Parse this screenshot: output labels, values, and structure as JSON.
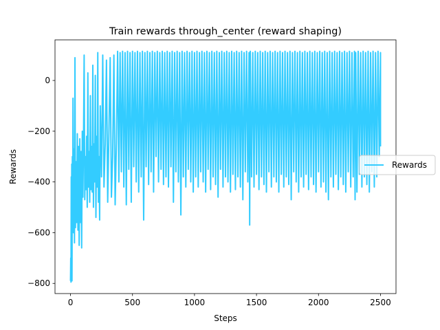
{
  "chart_data": {
    "type": "line",
    "title": "Train rewards through_center (reward shaping)",
    "xlabel": "Steps",
    "ylabel": "Rewards",
    "xlim": [
      -125,
      2625
    ],
    "ylim": [
      -840,
      160
    ],
    "xticks": [
      0,
      500,
      1000,
      1500,
      2000,
      2500
    ],
    "xtick_labels": [
      "0",
      "500",
      "1000",
      "1500",
      "2000",
      "2500"
    ],
    "yticks": [
      -800,
      -600,
      -400,
      -200,
      0
    ],
    "ytick_labels": [
      "−800",
      "−600",
      "−400",
      "−200",
      "0"
    ],
    "grid": false,
    "legend_position": "right",
    "series": [
      {
        "name": "Rewards",
        "color": "#33ccff",
        "description_points": [
          [
            0,
            -790
          ],
          [
            2,
            -700
          ],
          [
            4,
            -795
          ],
          [
            6,
            -380
          ],
          [
            8,
            -780
          ],
          [
            10,
            -330
          ],
          [
            12,
            -790
          ],
          [
            15,
            -300
          ],
          [
            18,
            -560
          ],
          [
            20,
            -70
          ],
          [
            24,
            -600
          ],
          [
            28,
            -270
          ],
          [
            32,
            -640
          ],
          [
            36,
            90
          ],
          [
            40,
            -580
          ],
          [
            45,
            -320
          ],
          [
            50,
            -560
          ],
          [
            55,
            -210
          ],
          [
            60,
            -590
          ],
          [
            65,
            -260
          ],
          [
            70,
            -650
          ],
          [
            75,
            -230
          ],
          [
            80,
            -560
          ],
          [
            85,
            -280
          ],
          [
            90,
            -660
          ],
          [
            95,
            -200
          ],
          [
            100,
            -460
          ],
          [
            105,
            -230
          ],
          [
            110,
            100
          ],
          [
            115,
            -470
          ],
          [
            120,
            -300
          ],
          [
            125,
            -430
          ],
          [
            130,
            -220
          ],
          [
            135,
            -500
          ],
          [
            140,
            30
          ],
          [
            145,
            -420
          ],
          [
            150,
            -280
          ],
          [
            155,
            -480
          ],
          [
            160,
            -60
          ],
          [
            165,
            -430
          ],
          [
            170,
            -260
          ],
          [
            175,
            -440
          ],
          [
            180,
            60
          ],
          [
            185,
            -500
          ],
          [
            190,
            -250
          ],
          [
            195,
            -400
          ],
          [
            200,
            20
          ],
          [
            205,
            -540
          ],
          [
            210,
            -220
          ],
          [
            215,
            -420
          ],
          [
            220,
            110
          ],
          [
            225,
            -480
          ],
          [
            230,
            -300
          ],
          [
            235,
            -550
          ],
          [
            240,
            -100
          ],
          [
            250,
            -380
          ],
          [
            260,
            100
          ],
          [
            270,
            -420
          ],
          [
            280,
            -250
          ],
          [
            290,
            80
          ],
          [
            300,
            -480
          ],
          [
            310,
            -200
          ],
          [
            320,
            90
          ],
          [
            330,
            -460
          ],
          [
            340,
            -300
          ],
          [
            350,
            100
          ],
          [
            360,
            -490
          ],
          [
            370,
            -250
          ],
          [
            380,
            115
          ],
          [
            390,
            -400
          ],
          [
            400,
            110
          ],
          [
            410,
            -360
          ],
          [
            420,
            115
          ],
          [
            430,
            -420
          ],
          [
            440,
            110
          ],
          [
            450,
            -490
          ],
          [
            460,
            115
          ],
          [
            470,
            -350
          ],
          [
            480,
            110
          ],
          [
            490,
            -480
          ],
          [
            500,
            115
          ],
          [
            510,
            -340
          ],
          [
            520,
            110
          ],
          [
            530,
            -400
          ],
          [
            540,
            115
          ],
          [
            550,
            -440
          ],
          [
            560,
            110
          ],
          [
            570,
            -380
          ],
          [
            580,
            115
          ],
          [
            590,
            -550
          ],
          [
            600,
            110
          ],
          [
            610,
            -340
          ],
          [
            620,
            115
          ],
          [
            630,
            -410
          ],
          [
            640,
            110
          ],
          [
            650,
            -360
          ],
          [
            660,
            115
          ],
          [
            670,
            -440
          ],
          [
            680,
            110
          ],
          [
            690,
            -300
          ],
          [
            700,
            115
          ],
          [
            710,
            -400
          ],
          [
            720,
            110
          ],
          [
            730,
            -350
          ],
          [
            740,
            115
          ],
          [
            750,
            -410
          ],
          [
            760,
            110
          ],
          [
            770,
            -380
          ],
          [
            780,
            115
          ],
          [
            790,
            -420
          ],
          [
            800,
            110
          ],
          [
            810,
            -340
          ],
          [
            820,
            115
          ],
          [
            830,
            -480
          ],
          [
            840,
            110
          ],
          [
            850,
            -360
          ],
          [
            860,
            115
          ],
          [
            870,
            -400
          ],
          [
            880,
            110
          ],
          [
            890,
            -530
          ],
          [
            900,
            115
          ],
          [
            910,
            -380
          ],
          [
            920,
            110
          ],
          [
            930,
            -420
          ],
          [
            940,
            115
          ],
          [
            950,
            -350
          ],
          [
            960,
            110
          ],
          [
            970,
            -400
          ],
          [
            980,
            115
          ],
          [
            990,
            -440
          ],
          [
            1000,
            110
          ],
          [
            1010,
            -380
          ],
          [
            1020,
            115
          ],
          [
            1030,
            -420
          ],
          [
            1040,
            110
          ],
          [
            1050,
            -360
          ],
          [
            1060,
            115
          ],
          [
            1070,
            -400
          ],
          [
            1080,
            110
          ],
          [
            1090,
            -440
          ],
          [
            1100,
            115
          ],
          [
            1110,
            -350
          ],
          [
            1120,
            110
          ],
          [
            1130,
            -430
          ],
          [
            1140,
            115
          ],
          [
            1150,
            -380
          ],
          [
            1160,
            110
          ],
          [
            1170,
            -410
          ],
          [
            1180,
            115
          ],
          [
            1190,
            -460
          ],
          [
            1200,
            110
          ],
          [
            1210,
            -350
          ],
          [
            1220,
            115
          ],
          [
            1230,
            -420
          ],
          [
            1240,
            110
          ],
          [
            1250,
            -380
          ],
          [
            1260,
            115
          ],
          [
            1270,
            -400
          ],
          [
            1280,
            110
          ],
          [
            1290,
            -440
          ],
          [
            1300,
            115
          ],
          [
            1310,
            -370
          ],
          [
            1320,
            110
          ],
          [
            1330,
            -430
          ],
          [
            1340,
            115
          ],
          [
            1350,
            -380
          ],
          [
            1360,
            110
          ],
          [
            1370,
            -420
          ],
          [
            1380,
            115
          ],
          [
            1390,
            -470
          ],
          [
            1400,
            110
          ],
          [
            1410,
            -360
          ],
          [
            1420,
            115
          ],
          [
            1430,
            -400
          ],
          [
            1440,
            110
          ],
          [
            1445,
            -570
          ],
          [
            1450,
            115
          ],
          [
            1460,
            -380
          ],
          [
            1470,
            110
          ],
          [
            1480,
            -420
          ],
          [
            1490,
            115
          ],
          [
            1500,
            -370
          ],
          [
            1510,
            110
          ],
          [
            1520,
            -430
          ],
          [
            1530,
            115
          ],
          [
            1540,
            -380
          ],
          [
            1550,
            110
          ],
          [
            1560,
            -410
          ],
          [
            1570,
            115
          ],
          [
            1580,
            -440
          ],
          [
            1590,
            110
          ],
          [
            1600,
            -360
          ],
          [
            1610,
            115
          ],
          [
            1620,
            -420
          ],
          [
            1630,
            110
          ],
          [
            1640,
            -380
          ],
          [
            1650,
            115
          ],
          [
            1660,
            -400
          ],
          [
            1670,
            110
          ],
          [
            1680,
            -440
          ],
          [
            1690,
            115
          ],
          [
            1700,
            -370
          ],
          [
            1710,
            110
          ],
          [
            1720,
            -420
          ],
          [
            1730,
            115
          ],
          [
            1740,
            -380
          ],
          [
            1750,
            110
          ],
          [
            1760,
            -410
          ],
          [
            1770,
            115
          ],
          [
            1780,
            -470
          ],
          [
            1790,
            110
          ],
          [
            1800,
            -360
          ],
          [
            1810,
            115
          ],
          [
            1820,
            -400
          ],
          [
            1830,
            110
          ],
          [
            1840,
            -440
          ],
          [
            1850,
            115
          ],
          [
            1860,
            -380
          ],
          [
            1870,
            110
          ],
          [
            1880,
            -420
          ],
          [
            1890,
            115
          ],
          [
            1900,
            -370
          ],
          [
            1910,
            110
          ],
          [
            1920,
            -430
          ],
          [
            1930,
            115
          ],
          [
            1940,
            -380
          ],
          [
            1950,
            110
          ],
          [
            1960,
            -410
          ],
          [
            1970,
            115
          ],
          [
            1980,
            -440
          ],
          [
            1990,
            110
          ],
          [
            2000,
            -360
          ],
          [
            2010,
            115
          ],
          [
            2020,
            -420
          ],
          [
            2030,
            110
          ],
          [
            2040,
            -400
          ],
          [
            2050,
            115
          ],
          [
            2060,
            -440
          ],
          [
            2070,
            110
          ],
          [
            2080,
            -470
          ],
          [
            2090,
            115
          ],
          [
            2100,
            -380
          ],
          [
            2110,
            110
          ],
          [
            2120,
            -420
          ],
          [
            2130,
            115
          ],
          [
            2140,
            -370
          ],
          [
            2150,
            110
          ],
          [
            2160,
            -430
          ],
          [
            2170,
            115
          ],
          [
            2180,
            -380
          ],
          [
            2190,
            110
          ],
          [
            2200,
            -410
          ],
          [
            2210,
            115
          ],
          [
            2220,
            -440
          ],
          [
            2230,
            110
          ],
          [
            2240,
            -360
          ],
          [
            2250,
            115
          ],
          [
            2260,
            -420
          ],
          [
            2270,
            110
          ],
          [
            2280,
            -380
          ],
          [
            2290,
            115
          ],
          [
            2295,
            -470
          ],
          [
            2300,
            110
          ],
          [
            2310,
            -440
          ],
          [
            2320,
            115
          ],
          [
            2330,
            -370
          ],
          [
            2340,
            110
          ],
          [
            2350,
            -420
          ],
          [
            2360,
            115
          ],
          [
            2370,
            -380
          ],
          [
            2380,
            110
          ],
          [
            2390,
            -410
          ],
          [
            2400,
            115
          ],
          [
            2410,
            -440
          ],
          [
            2420,
            110
          ],
          [
            2430,
            -360
          ],
          [
            2440,
            115
          ],
          [
            2450,
            -420
          ],
          [
            2460,
            110
          ],
          [
            2470,
            -380
          ],
          [
            2480,
            115
          ],
          [
            2490,
            -300
          ],
          [
            2500,
            110
          ],
          [
            2500,
            -260
          ]
        ]
      }
    ]
  }
}
